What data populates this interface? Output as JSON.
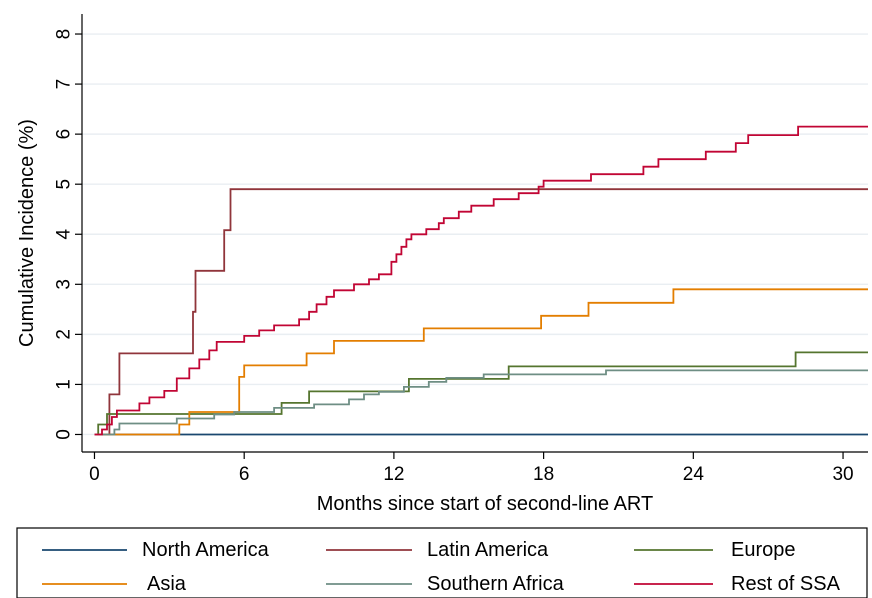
{
  "chart_data": {
    "type": "line",
    "step": true,
    "xlabel": "Months since start of second-line ART",
    "ylabel": "Cumulative Incidence (%)",
    "xticks": [
      0,
      6,
      12,
      18,
      24,
      30
    ],
    "yticks": [
      0,
      1,
      2,
      3,
      4,
      5,
      6,
      7,
      8
    ],
    "xlim": [
      -0.5,
      31
    ],
    "ylim": [
      -0.35,
      8.4
    ],
    "grid": true,
    "legend_position": "bottom",
    "series": [
      {
        "name": "North America",
        "color": "#1a476f",
        "points": [
          [
            0,
            0
          ],
          [
            31,
            0
          ]
        ]
      },
      {
        "name": "Latin America",
        "color": "#90353b",
        "points": [
          [
            0,
            0
          ],
          [
            0.6,
            0
          ],
          [
            0.6,
            0.8
          ],
          [
            1,
            0.8
          ],
          [
            1,
            1.62
          ],
          [
            3.95,
            1.62
          ],
          [
            3.95,
            2.45
          ],
          [
            4.05,
            2.45
          ],
          [
            4.05,
            3.27
          ],
          [
            5.2,
            3.27
          ],
          [
            5.2,
            4.08
          ],
          [
            5.45,
            4.08
          ],
          [
            5.45,
            4.9
          ],
          [
            31,
            4.9
          ]
        ]
      },
      {
        "name": "Europe",
        "color": "#55752f",
        "points": [
          [
            0,
            0
          ],
          [
            0.15,
            0
          ],
          [
            0.15,
            0.2
          ],
          [
            0.5,
            0.2
          ],
          [
            0.5,
            0.41
          ],
          [
            6,
            0.41
          ],
          [
            6,
            0.41
          ],
          [
            7.5,
            0.41
          ],
          [
            7.5,
            0.63
          ],
          [
            8.6,
            0.63
          ],
          [
            8.6,
            0.86
          ],
          [
            10.5,
            0.86
          ],
          [
            10.5,
            0.86
          ],
          [
            12.6,
            0.86
          ],
          [
            12.6,
            1.11
          ],
          [
            16.6,
            1.11
          ],
          [
            16.6,
            1.36
          ],
          [
            28.1,
            1.36
          ],
          [
            28.1,
            1.64
          ],
          [
            31,
            1.64
          ]
        ]
      },
      {
        "name": "Asia",
        "color": "#e37e00",
        "points": [
          [
            0,
            0
          ],
          [
            3.4,
            0
          ],
          [
            3.4,
            0.2
          ],
          [
            3.8,
            0.2
          ],
          [
            3.8,
            0.45
          ],
          [
            5.8,
            0.45
          ],
          [
            5.8,
            1.15
          ],
          [
            6.0,
            1.15
          ],
          [
            6.0,
            1.38
          ],
          [
            8.5,
            1.38
          ],
          [
            8.5,
            1.62
          ],
          [
            9.6,
            1.62
          ],
          [
            9.6,
            1.87
          ],
          [
            13.2,
            1.87
          ],
          [
            13.2,
            2.12
          ],
          [
            17.9,
            2.12
          ],
          [
            17.9,
            2.37
          ],
          [
            19.8,
            2.37
          ],
          [
            19.8,
            2.63
          ],
          [
            23.2,
            2.63
          ],
          [
            23.2,
            2.9
          ],
          [
            31,
            2.9
          ]
        ]
      },
      {
        "name": "Southern Africa",
        "color": "#6e8e84",
        "points": [
          [
            0,
            0
          ],
          [
            0.8,
            0
          ],
          [
            0.8,
            0.1
          ],
          [
            1,
            0.1
          ],
          [
            1,
            0.22
          ],
          [
            3.3,
            0.22
          ],
          [
            3.3,
            0.32
          ],
          [
            4.8,
            0.32
          ],
          [
            4.8,
            0.4
          ],
          [
            5.6,
            0.4
          ],
          [
            5.6,
            0.45
          ],
          [
            7.2,
            0.45
          ],
          [
            7.2,
            0.53
          ],
          [
            8.8,
            0.53
          ],
          [
            8.8,
            0.6
          ],
          [
            10.2,
            0.6
          ],
          [
            10.2,
            0.7
          ],
          [
            10.8,
            0.7
          ],
          [
            10.8,
            0.8
          ],
          [
            11.4,
            0.8
          ],
          [
            11.4,
            0.85
          ],
          [
            12.4,
            0.85
          ],
          [
            12.4,
            0.95
          ],
          [
            13.4,
            0.95
          ],
          [
            13.4,
            1.05
          ],
          [
            14.1,
            1.05
          ],
          [
            14.1,
            1.13
          ],
          [
            15.6,
            1.13
          ],
          [
            15.6,
            1.2
          ],
          [
            20.5,
            1.2
          ],
          [
            20.5,
            1.28
          ],
          [
            31,
            1.28
          ]
        ]
      },
      {
        "name": "Rest of SSA",
        "color": "#c10534",
        "points": [
          [
            0,
            0
          ],
          [
            0.3,
            0
          ],
          [
            0.3,
            0.1
          ],
          [
            0.5,
            0.1
          ],
          [
            0.5,
            0.2
          ],
          [
            0.7,
            0.2
          ],
          [
            0.7,
            0.35
          ],
          [
            0.9,
            0.35
          ],
          [
            0.9,
            0.48
          ],
          [
            1.8,
            0.48
          ],
          [
            1.8,
            0.62
          ],
          [
            2.2,
            0.62
          ],
          [
            2.2,
            0.74
          ],
          [
            2.8,
            0.74
          ],
          [
            2.8,
            0.87
          ],
          [
            3.3,
            0.87
          ],
          [
            3.3,
            1.12
          ],
          [
            3.8,
            1.12
          ],
          [
            3.8,
            1.32
          ],
          [
            4.2,
            1.32
          ],
          [
            4.2,
            1.5
          ],
          [
            4.6,
            1.5
          ],
          [
            4.6,
            1.68
          ],
          [
            4.9,
            1.68
          ],
          [
            4.9,
            1.85
          ],
          [
            6.0,
            1.85
          ],
          [
            6.0,
            1.97
          ],
          [
            6.6,
            1.97
          ],
          [
            6.6,
            2.08
          ],
          [
            7.2,
            2.08
          ],
          [
            7.2,
            2.18
          ],
          [
            8.2,
            2.18
          ],
          [
            8.2,
            2.3
          ],
          [
            8.6,
            2.3
          ],
          [
            8.6,
            2.45
          ],
          [
            8.9,
            2.45
          ],
          [
            8.9,
            2.6
          ],
          [
            9.3,
            2.6
          ],
          [
            9.3,
            2.75
          ],
          [
            9.6,
            2.75
          ],
          [
            9.6,
            2.88
          ],
          [
            10.4,
            2.88
          ],
          [
            10.4,
            3.0
          ],
          [
            11.0,
            3.0
          ],
          [
            11.0,
            3.1
          ],
          [
            11.4,
            3.1
          ],
          [
            11.4,
            3.2
          ],
          [
            11.9,
            3.2
          ],
          [
            11.9,
            3.45
          ],
          [
            12.1,
            3.45
          ],
          [
            12.1,
            3.6
          ],
          [
            12.3,
            3.6
          ],
          [
            12.3,
            3.75
          ],
          [
            12.5,
            3.75
          ],
          [
            12.5,
            3.9
          ],
          [
            12.7,
            3.9
          ],
          [
            12.7,
            4.0
          ],
          [
            13.3,
            4.0
          ],
          [
            13.3,
            4.1
          ],
          [
            13.8,
            4.1
          ],
          [
            13.8,
            4.22
          ],
          [
            14.0,
            4.22
          ],
          [
            14.0,
            4.32
          ],
          [
            14.6,
            4.32
          ],
          [
            14.6,
            4.45
          ],
          [
            15.1,
            4.45
          ],
          [
            15.1,
            4.57
          ],
          [
            16.0,
            4.57
          ],
          [
            16.0,
            4.7
          ],
          [
            17.0,
            4.7
          ],
          [
            17.0,
            4.82
          ],
          [
            17.8,
            4.82
          ],
          [
            17.8,
            4.95
          ],
          [
            18.0,
            4.95
          ],
          [
            18.0,
            5.07
          ],
          [
            19.9,
            5.07
          ],
          [
            19.9,
            5.2
          ],
          [
            22.0,
            5.2
          ],
          [
            22.0,
            5.35
          ],
          [
            22.6,
            5.35
          ],
          [
            22.6,
            5.5
          ],
          [
            24.5,
            5.5
          ],
          [
            24.5,
            5.65
          ],
          [
            25.7,
            5.65
          ],
          [
            25.7,
            5.82
          ],
          [
            26.2,
            5.82
          ],
          [
            26.2,
            5.98
          ],
          [
            28.2,
            5.98
          ],
          [
            28.2,
            6.15
          ],
          [
            31,
            6.15
          ]
        ]
      }
    ]
  }
}
